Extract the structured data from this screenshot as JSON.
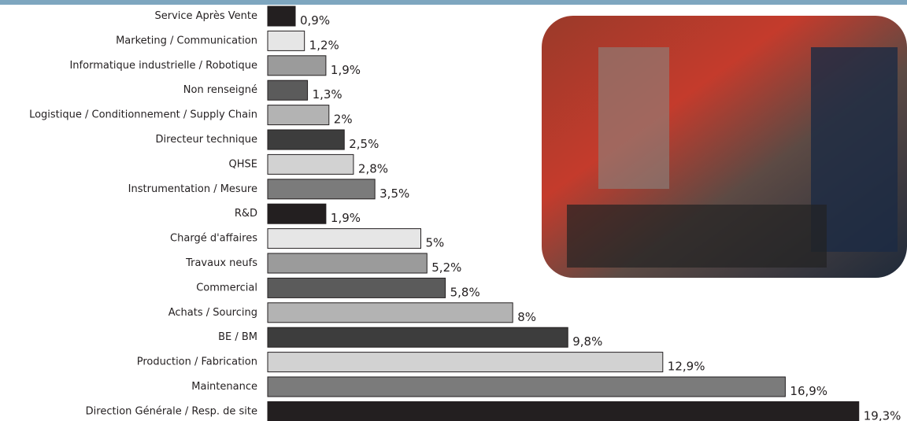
{
  "chart_data": {
    "type": "bar",
    "orientation": "horizontal",
    "categories": [
      "Service Après Vente",
      "Marketing / Communication",
      "Informatique industrielle / Robotique",
      "Non renseigné",
      "Logistique / Conditionnement / Supply Chain",
      "Directeur technique",
      "QHSE",
      "Instrumentation / Mesure",
      "R&D",
      "Chargé d'affaires",
      "Travaux neufs",
      "Commercial",
      "Achats / Sourcing",
      "BE / BM",
      "Production / Fabrication",
      "Maintenance",
      "Direction Générale / Resp. de site"
    ],
    "values": [
      0.9,
      1.2,
      1.9,
      1.3,
      2,
      2.5,
      2.8,
      3.5,
      1.9,
      5,
      5.2,
      5.8,
      8,
      9.8,
      12.9,
      16.9,
      19.3
    ],
    "value_labels": [
      "0,9%",
      "1,2%",
      "1,9%",
      "1,3%",
      "2%",
      "2,5%",
      "2,8%",
      "3,5%",
      "1,9%",
      "5%",
      "5,2%",
      "5,8%",
      "8%",
      "9,8%",
      "12,9%",
      "16,9%",
      "19,3%"
    ],
    "colors": [
      "#231f20",
      "#e6e6e6",
      "#9b9b9b",
      "#5b5b5b",
      "#b3b3b3",
      "#3d3d3d",
      "#d2d2d2",
      "#7b7b7b",
      "#231f20",
      "#e6e6e6",
      "#9b9b9b",
      "#5b5b5b",
      "#b3b3b3",
      "#3d3d3d",
      "#d2d2d2",
      "#7b7b7b",
      "#231f20"
    ]
  }
}
